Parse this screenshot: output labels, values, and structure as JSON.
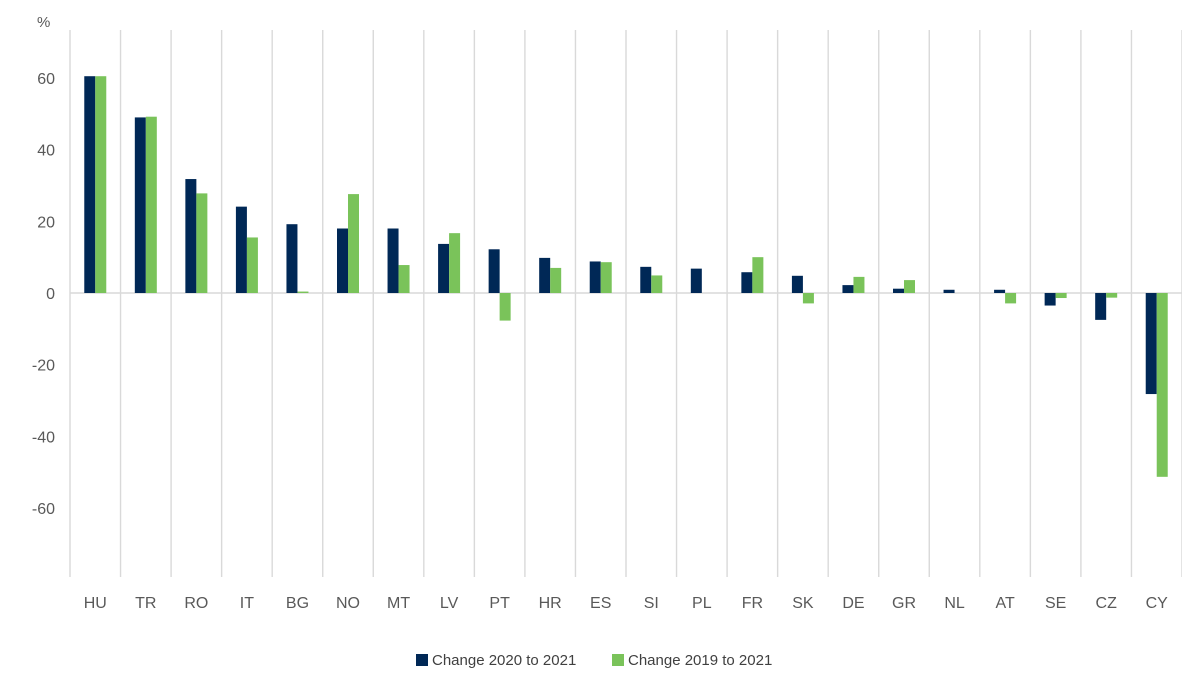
{
  "chart_data": {
    "type": "bar",
    "ylabel": "%",
    "ylim": [
      -80,
      80
    ],
    "yticks": [
      60,
      40,
      20,
      0,
      -20,
      -40,
      -60
    ],
    "grid": "vertical separators between categories",
    "legend_position": "bottom-center",
    "categories": [
      "HU",
      "TR",
      "RO",
      "IT",
      "BG",
      "NO",
      "MT",
      "LV",
      "PT",
      "HR",
      "ES",
      "SI",
      "PL",
      "FR",
      "SK",
      "DE",
      "GR",
      "NL",
      "AT",
      "SE",
      "CZ",
      "CY"
    ],
    "series": [
      {
        "name": "Change 2020 to 2021",
        "color": "#002856",
        "values": [
          60.5,
          49.0,
          31.8,
          24.1,
          19.2,
          18.0,
          18.0,
          13.7,
          12.2,
          9.8,
          8.8,
          7.3,
          6.8,
          5.8,
          4.8,
          2.2,
          1.2,
          0.9,
          0.9,
          -3.5,
          -7.5,
          -28.2
        ]
      },
      {
        "name": "Change 2019 to 2021",
        "color": "#7ac35a",
        "values": [
          60.5,
          49.2,
          27.8,
          15.5,
          0.4,
          27.6,
          7.8,
          16.7,
          -7.7,
          7.0,
          8.6,
          4.9,
          0.0,
          10.0,
          -2.9,
          4.5,
          3.6,
          0.0,
          -2.9,
          -1.4,
          -1.3,
          -51.3
        ]
      }
    ]
  }
}
